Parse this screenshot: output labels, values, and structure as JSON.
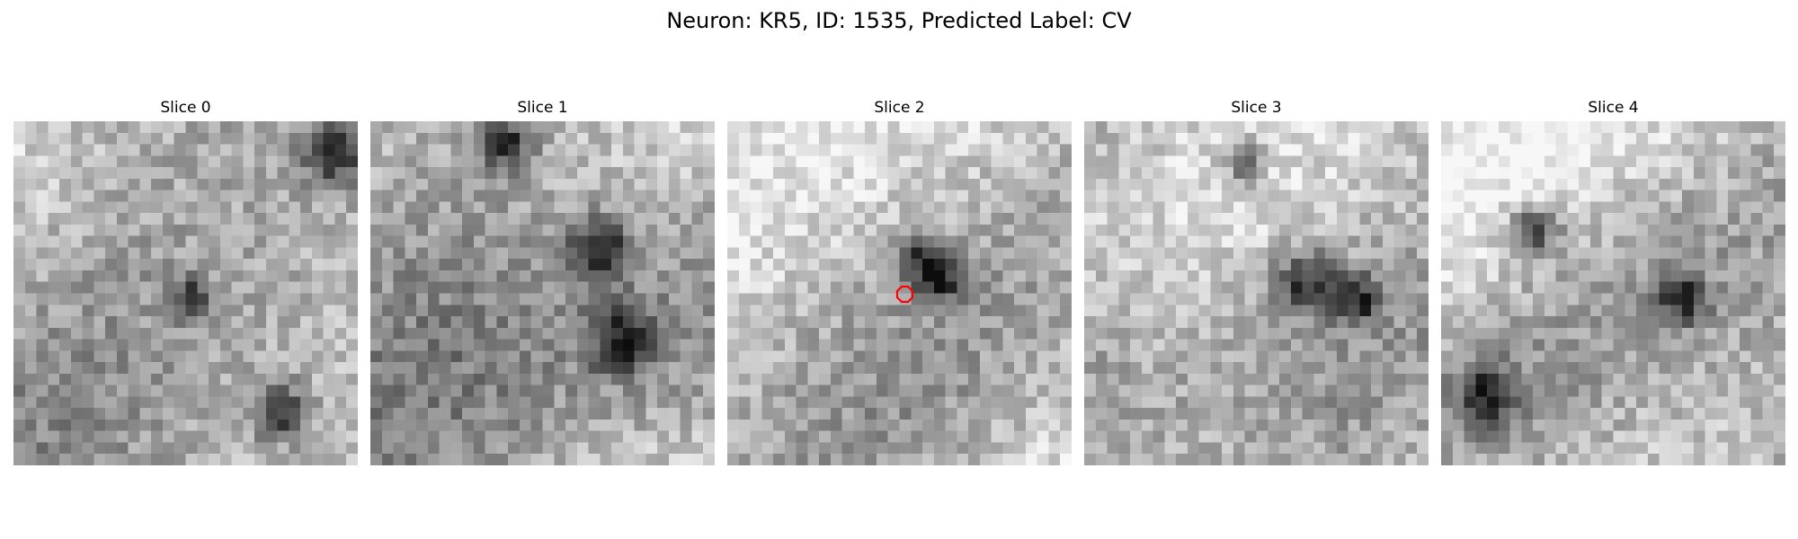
{
  "figure": {
    "title": "Neuron: KR5, ID: 1535, Predicted Label: CV"
  },
  "panels": [
    {
      "title": "Slice 0",
      "seed": 11,
      "dark_blobs": [
        [
          0.92,
          0.08,
          0.1
        ],
        [
          0.76,
          0.83,
          0.08
        ],
        [
          0.5,
          0.5,
          0.06
        ]
      ]
    },
    {
      "title": "Slice 1",
      "seed": 23,
      "dark_blobs": [
        [
          0.65,
          0.35,
          0.09
        ],
        [
          0.72,
          0.62,
          0.1
        ],
        [
          0.38,
          0.05,
          0.07
        ]
      ]
    },
    {
      "title": "Slice 2",
      "seed": 37,
      "dark_blobs": [
        [
          0.55,
          0.38,
          0.07
        ],
        [
          0.6,
          0.45,
          0.06
        ]
      ],
      "marker": true
    },
    {
      "title": "Slice 3",
      "seed": 41,
      "dark_blobs": [
        [
          0.62,
          0.45,
          0.09
        ],
        [
          0.78,
          0.5,
          0.07
        ],
        [
          0.45,
          0.1,
          0.06
        ]
      ]
    },
    {
      "title": "Slice 4",
      "seed": 53,
      "dark_blobs": [
        [
          0.12,
          0.78,
          0.09
        ],
        [
          0.25,
          0.3,
          0.08
        ],
        [
          0.68,
          0.5,
          0.07
        ]
      ]
    }
  ],
  "colors": {
    "marker": "#ff0000",
    "colormap": "gray"
  }
}
